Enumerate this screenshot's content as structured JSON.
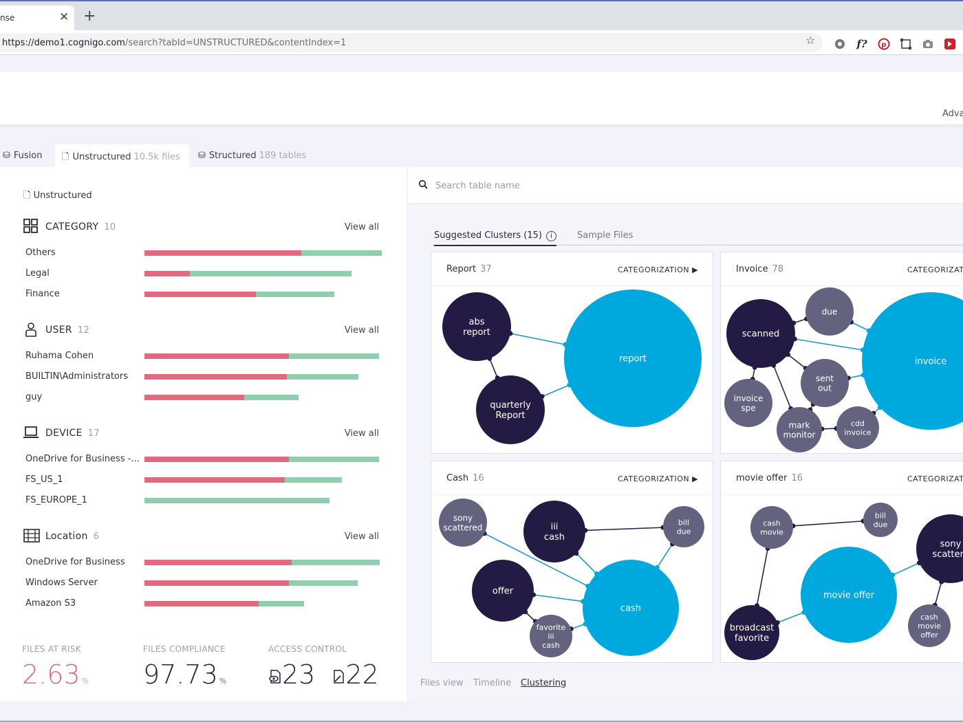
{
  "browser": {
    "tab_title": "nse",
    "close_glyph": "✕",
    "new_tab_glyph": "+",
    "url_host": "https://demo1.cognigo.com",
    "url_rest": "/search?tabId=UNSTRUCTURED&contentIndex=1",
    "star_icon": "☆"
  },
  "header": {
    "advanced_label": "Adva"
  },
  "tabs": [
    {
      "label": "Fusion",
      "count": ""
    },
    {
      "label": "Unstructured",
      "count": "10.5k files"
    },
    {
      "label": "Structured",
      "count": "189 tables"
    }
  ],
  "left": {
    "title": "Unstructured",
    "view_all": "View all",
    "sections": [
      {
        "name": "CATEGORY",
        "count": "10",
        "icon": "grid-icon",
        "rows": [
          {
            "label": "Others",
            "red": 0.66,
            "green": 0.34
          },
          {
            "label": "Legal",
            "red": 0.19,
            "green": 0.68
          },
          {
            "label": "Finance",
            "red": 0.47,
            "green": 0.33
          }
        ]
      },
      {
        "name": "USER",
        "count": "12",
        "icon": "user-icon",
        "rows": [
          {
            "label": "Ruhama Cohen",
            "red": 0.61,
            "green": 0.38
          },
          {
            "label": "BUILTIN\\Administrators",
            "red": 0.6,
            "green": 0.3
          },
          {
            "label": "guy",
            "red": 0.42,
            "green": 0.23
          }
        ]
      },
      {
        "name": "DEVICE",
        "count": "17",
        "icon": "laptop-icon",
        "rows": [
          {
            "label": "OneDrive for Business -...",
            "red": 0.61,
            "green": 0.38
          },
          {
            "label": "FS_US_1",
            "red": 0.59,
            "green": 0.24
          },
          {
            "label": "FS_EUROPE_1",
            "red": 0.0,
            "green": 0.78
          }
        ]
      },
      {
        "name": "Location",
        "count": "6",
        "icon": "server-icon",
        "rows": [
          {
            "label": "OneDrive for Business",
            "red": 0.62,
            "green": 0.37
          },
          {
            "label": "Windows Server",
            "red": 0.61,
            "green": 0.29
          },
          {
            "label": "Amazon S3",
            "red": 0.48,
            "green": 0.19
          }
        ]
      }
    ],
    "stats": {
      "risk_label": "FILES AT RISK",
      "risk_value": "2.63",
      "risk_unit": "%",
      "compliance_label": "FILES COMPLIANCE",
      "compliance_value": "97.73",
      "compliance_unit": "%",
      "access_label": "ACCESS CONTROL",
      "access_value_a": "23",
      "access_value_b": "22"
    }
  },
  "right": {
    "search_placeholder": "Search table name",
    "subtabs": {
      "clusters": "Suggested Clusters (15)",
      "info": "i",
      "samples": "Sample Files"
    },
    "categorization": "CATEGORIZATION ▶",
    "colors": {
      "dark": "#241b44",
      "mid": "#63637f",
      "main": "#00a9dd",
      "edge_dark": "#2a2350",
      "edge_blue": "#1a9bc8"
    },
    "bottom_links": [
      "Files view",
      "Timeline",
      "Clustering"
    ],
    "cards": [
      {
        "title": "Report",
        "count": "37",
        "nodes": [
          {
            "lines": [
              "abs",
              "report"
            ],
            "kind": "dark"
          },
          {
            "lines": [
              "quarterly",
              "Report"
            ],
            "kind": "dark"
          },
          {
            "lines": [
              "report"
            ],
            "kind": "main"
          }
        ]
      },
      {
        "title": "Invoice",
        "count": "78",
        "nodes": [
          {
            "lines": [
              "scanned"
            ],
            "kind": "dark"
          },
          {
            "lines": [
              "due"
            ],
            "kind": "mid"
          },
          {
            "lines": [
              "sent",
              "out"
            ],
            "kind": "mid"
          },
          {
            "lines": [
              "invoice",
              "spe"
            ],
            "kind": "mid"
          },
          {
            "lines": [
              "mark",
              "monitor"
            ],
            "kind": "mid"
          },
          {
            "lines": [
              "cdd",
              "invoice"
            ],
            "kind": "mid"
          },
          {
            "lines": [
              "invoice"
            ],
            "kind": "main"
          }
        ]
      },
      {
        "title": "Cash",
        "count": "16",
        "nodes": [
          {
            "lines": [
              "sony",
              "scattered"
            ],
            "kind": "mid"
          },
          {
            "lines": [
              "iii",
              "cash"
            ],
            "kind": "dark"
          },
          {
            "lines": [
              "bill",
              "due"
            ],
            "kind": "mid"
          },
          {
            "lines": [
              "offer"
            ],
            "kind": "dark"
          },
          {
            "lines": [
              "favorite",
              "iii",
              "cash"
            ],
            "kind": "mid"
          },
          {
            "lines": [
              "cash"
            ],
            "kind": "main"
          }
        ]
      },
      {
        "title": "movie offer",
        "count": "16",
        "nodes": [
          {
            "lines": [
              "cash",
              "movie"
            ],
            "kind": "mid"
          },
          {
            "lines": [
              "bill",
              "due"
            ],
            "kind": "mid"
          },
          {
            "lines": [
              "sony",
              "scattere"
            ],
            "kind": "dark"
          },
          {
            "lines": [
              "movie offer"
            ],
            "kind": "main"
          },
          {
            "lines": [
              "broadcast",
              "favorite"
            ],
            "kind": "dark"
          },
          {
            "lines": [
              "cash",
              "movie",
              "offer"
            ],
            "kind": "mid"
          }
        ]
      }
    ]
  }
}
